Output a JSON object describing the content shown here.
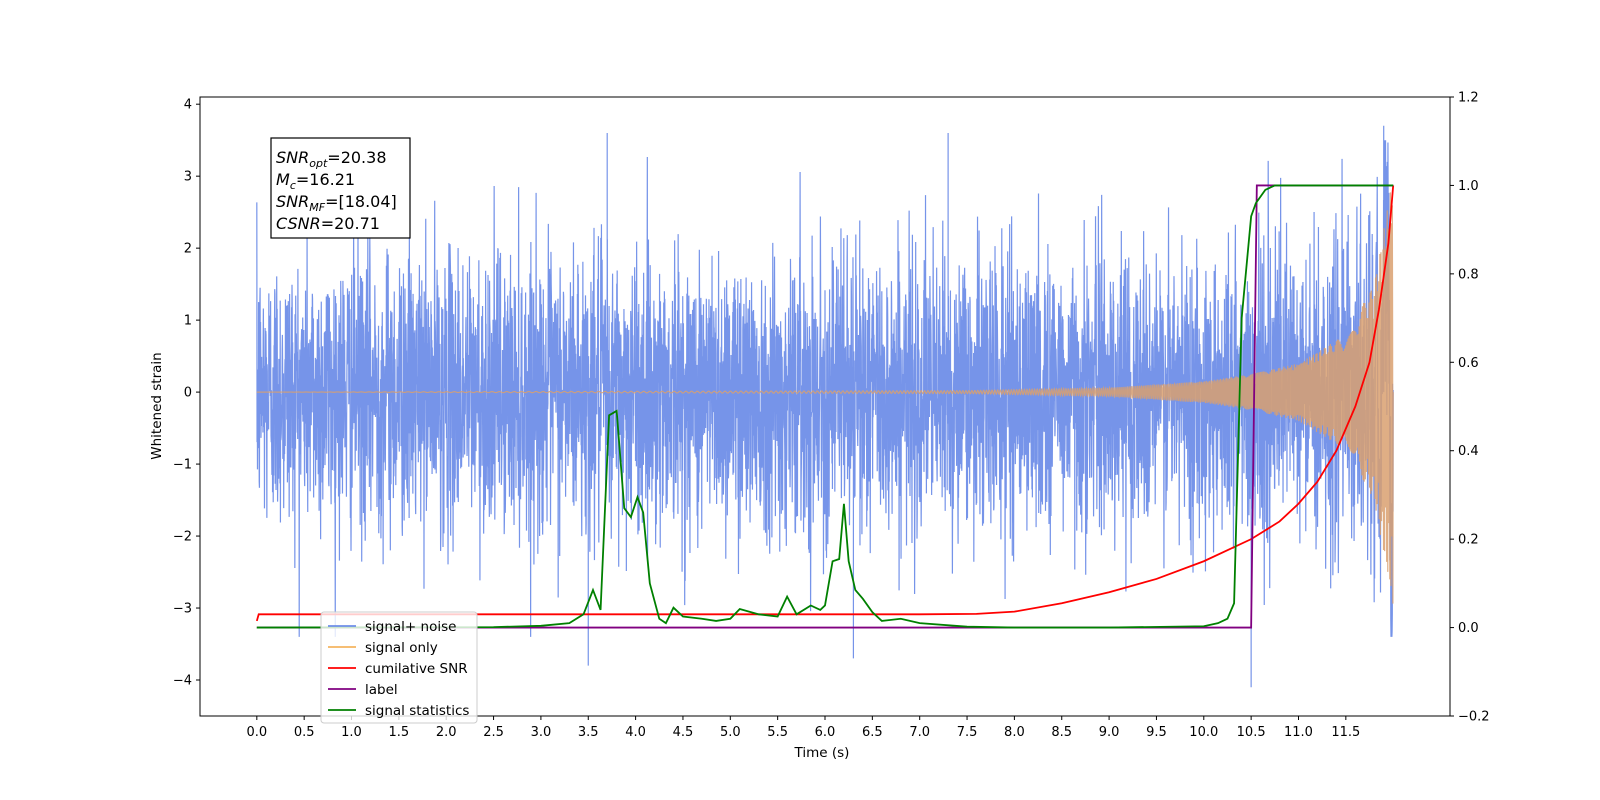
{
  "chart_data": {
    "type": "line",
    "xlabel": "Time (s)",
    "ylabel": "Whitened strain",
    "x_ticks": [
      "0.0",
      "0.5",
      "1.0",
      "1.5",
      "2.0",
      "2.5",
      "3.0",
      "3.5",
      "4.0",
      "4.5",
      "5.0",
      "5.5",
      "6.0",
      "6.5",
      "7.0",
      "7.5",
      "8.0",
      "8.5",
      "9.0",
      "9.5",
      "10.0",
      "10.5",
      "11.0",
      "11.5"
    ],
    "xlim": [
      -0.6,
      12.6
    ],
    "ylim": [
      -4.5,
      4.1
    ],
    "y_ticks": [
      4,
      3,
      2,
      1,
      0,
      -1,
      -2,
      -3,
      -4
    ],
    "y_tick_labels": [
      "4",
      "3",
      "2",
      "1",
      "0",
      "−1",
      "−2",
      "−3",
      "−4"
    ],
    "y2lim": [
      -0.2,
      1.2
    ],
    "y2_ticks": [
      "1.2",
      "1.0",
      "0.8",
      "0.6",
      "0.4",
      "0.2",
      "0.0",
      "−0.2"
    ],
    "legend_position": "lower-left",
    "legend": [
      {
        "label": "signal+ noise",
        "color": "#6f8ee8"
      },
      {
        "label": "signal only",
        "color": "#f5b460"
      },
      {
        "label": "cumilative SNR",
        "color": "#ff0000"
      },
      {
        "label": "label",
        "color": "#800080"
      },
      {
        "label": "signal statistics",
        "color": "#008000"
      }
    ],
    "annotation": [
      {
        "sym": "SNR",
        "sub": "opt",
        "val": "=20.38"
      },
      {
        "sym": "M",
        "sub": "c",
        "val": "=16.21"
      },
      {
        "sym": "SNR",
        "sub": "MF",
        "val": "=[18.04]"
      },
      {
        "sym": "CSNR",
        "sub": "",
        "val": "=20.71"
      }
    ],
    "series": [
      {
        "name": "signal+ noise",
        "axis": "left",
        "color": "#6f8ee8",
        "description": "whitened noise plus chirp, duration 0–12 s",
        "x_range": [
          0,
          12
        ],
        "envelope_approx": [
          -2.5,
          2.5
        ],
        "peaks": [
          [
            3.5,
            -3.8
          ],
          [
            10.5,
            -4.1
          ],
          [
            11.9,
            3.7
          ],
          [
            3.7,
            3.6
          ],
          [
            7.3,
            3.6
          ],
          [
            6.3,
            -3.7
          ]
        ]
      },
      {
        "name": "signal only",
        "axis": "left",
        "color": "#f5b460",
        "description": "chirp waveform rising in amplitude to ~±3 near 12 s",
        "amplitude_points": [
          [
            0,
            0
          ],
          [
            7.5,
            0.02
          ],
          [
            9.0,
            0.06
          ],
          [
            10.0,
            0.15
          ],
          [
            10.5,
            0.25
          ],
          [
            11.0,
            0.4
          ],
          [
            11.5,
            0.8
          ],
          [
            11.8,
            1.5
          ],
          [
            12.0,
            3.0
          ]
        ]
      },
      {
        "name": "cumilative SNR",
        "axis": "right",
        "color": "#ff0000",
        "x": [
          0.0,
          0.02,
          1.0,
          3.0,
          5.0,
          7.0,
          7.6,
          8.0,
          8.5,
          9.0,
          9.5,
          10.0,
          10.5,
          10.8,
          11.0,
          11.2,
          11.4,
          11.6,
          11.75,
          11.85,
          11.95,
          12.0
        ],
        "y": [
          0.015,
          0.03,
          0.03,
          0.03,
          0.03,
          0.03,
          0.031,
          0.036,
          0.055,
          0.08,
          0.11,
          0.15,
          0.2,
          0.24,
          0.28,
          0.33,
          0.4,
          0.5,
          0.6,
          0.72,
          0.87,
          1.0
        ]
      },
      {
        "name": "label",
        "axis": "right",
        "color": "#800080",
        "x": [
          0.0,
          10.5,
          10.56,
          12.0
        ],
        "y": [
          0.0,
          0.0,
          1.0,
          1.0
        ]
      },
      {
        "name": "signal statistics",
        "axis": "right",
        "color": "#008000",
        "x": [
          0.0,
          2.5,
          3.0,
          3.3,
          3.45,
          3.55,
          3.63,
          3.72,
          3.8,
          3.88,
          3.95,
          4.02,
          4.08,
          4.15,
          4.25,
          4.32,
          4.4,
          4.5,
          4.7,
          4.85,
          5.0,
          5.1,
          5.3,
          5.5,
          5.6,
          5.7,
          5.85,
          5.95,
          6.0,
          6.08,
          6.15,
          6.2,
          6.25,
          6.32,
          6.4,
          6.5,
          6.6,
          6.8,
          7.0,
          7.5,
          8.0,
          9.0,
          10.0,
          10.15,
          10.25,
          10.32,
          10.4,
          10.5,
          10.55,
          10.65,
          10.75,
          11.0,
          12.0
        ],
        "y": [
          0.0,
          0.001,
          0.004,
          0.01,
          0.03,
          0.085,
          0.04,
          0.48,
          0.49,
          0.27,
          0.25,
          0.295,
          0.26,
          0.1,
          0.02,
          0.01,
          0.045,
          0.025,
          0.02,
          0.015,
          0.02,
          0.042,
          0.03,
          0.025,
          0.07,
          0.03,
          0.05,
          0.04,
          0.05,
          0.15,
          0.155,
          0.28,
          0.15,
          0.085,
          0.065,
          0.035,
          0.015,
          0.02,
          0.01,
          0.002,
          0.0,
          0.0,
          0.003,
          0.01,
          0.02,
          0.055,
          0.7,
          0.93,
          0.96,
          0.99,
          1.0,
          1.0,
          1.0
        ]
      }
    ]
  }
}
